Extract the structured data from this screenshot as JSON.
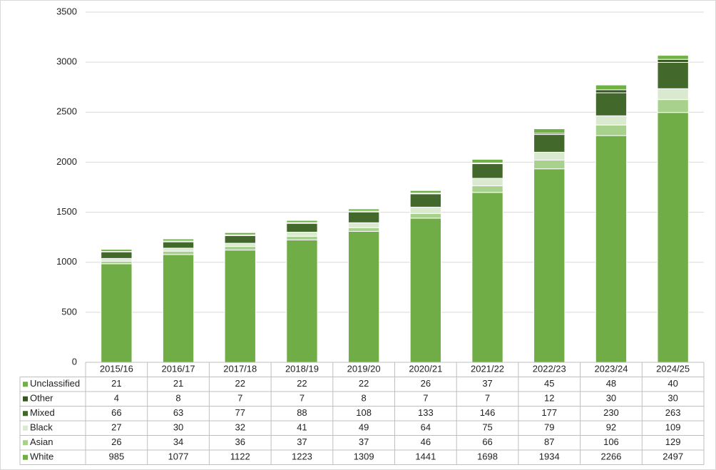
{
  "chart_data": {
    "type": "stacked_bar",
    "categories": [
      "2015/16",
      "2016/17",
      "2017/18",
      "2018/19",
      "2019/20",
      "2020/21",
      "2021/22",
      "2022/23",
      "2023/24",
      "2024/25"
    ],
    "series": [
      {
        "name": "White",
        "color": "#70ad47",
        "values": [
          985,
          1077,
          1122,
          1223,
          1309,
          1441,
          1698,
          1934,
          2266,
          2497
        ]
      },
      {
        "name": "Asian",
        "color": "#a9d18e",
        "values": [
          26,
          34,
          36,
          37,
          37,
          46,
          66,
          87,
          106,
          129
        ]
      },
      {
        "name": "Black",
        "color": "#d9ead0",
        "values": [
          27,
          30,
          32,
          41,
          49,
          64,
          75,
          79,
          92,
          109
        ]
      },
      {
        "name": "Mixed",
        "color": "#43682b",
        "values": [
          66,
          63,
          77,
          88,
          108,
          133,
          146,
          177,
          230,
          263
        ]
      },
      {
        "name": "Other",
        "color": "#375623",
        "values": [
          4,
          8,
          7,
          7,
          8,
          7,
          7,
          12,
          30,
          30
        ]
      },
      {
        "name": "Unclassified",
        "color": "#6fb144",
        "values": [
          21,
          21,
          22,
          22,
          22,
          26,
          37,
          45,
          48,
          40
        ]
      }
    ],
    "ylim": [
      0,
      3500
    ],
    "yticks": [
      0,
      500,
      1000,
      1500,
      2000,
      2500,
      3000,
      3500
    ],
    "grid": true
  }
}
